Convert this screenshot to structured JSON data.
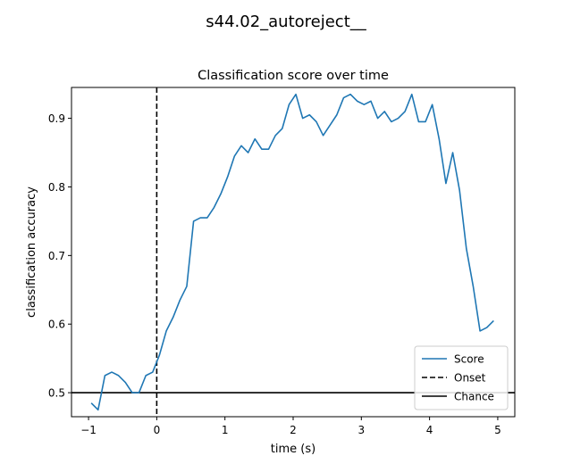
{
  "figure": {
    "suptitle": "s44.02_autoreject__"
  },
  "chart_data": {
    "type": "line",
    "title": "Classification score over time",
    "xlabel": "time (s)",
    "ylabel": "classification accuracy",
    "xlim": [
      -1.25,
      5.25
    ],
    "ylim": [
      0.465,
      0.945
    ],
    "xticks": [
      -1,
      0,
      1,
      2,
      3,
      4,
      5
    ],
    "xtick_labels": [
      "−1",
      "0",
      "1",
      "2",
      "3",
      "4",
      "5"
    ],
    "yticks": [
      0.5,
      0.6,
      0.7,
      0.8,
      0.9
    ],
    "ytick_labels": [
      "0.5",
      "0.6",
      "0.7",
      "0.8",
      "0.9"
    ],
    "grid": false,
    "legend_position": "lower right",
    "series": [
      {
        "name": "Score",
        "color": "#1f77b4",
        "x": [
          -0.96,
          -0.86,
          -0.76,
          -0.66,
          -0.56,
          -0.46,
          -0.36,
          -0.26,
          -0.16,
          -0.06,
          0.04,
          0.14,
          0.24,
          0.34,
          0.44,
          0.54,
          0.64,
          0.74,
          0.84,
          0.94,
          1.04,
          1.14,
          1.24,
          1.34,
          1.44,
          1.54,
          1.64,
          1.74,
          1.84,
          1.94,
          2.04,
          2.14,
          2.24,
          2.34,
          2.44,
          2.54,
          2.64,
          2.74,
          2.84,
          2.94,
          3.04,
          3.14,
          3.24,
          3.34,
          3.44,
          3.54,
          3.64,
          3.74,
          3.84,
          3.94,
          4.04,
          4.14,
          4.24,
          4.34,
          4.44,
          4.54,
          4.64,
          4.74,
          4.84,
          4.94
        ],
        "y": [
          0.485,
          0.475,
          0.525,
          0.53,
          0.525,
          0.515,
          0.5,
          0.5,
          0.525,
          0.53,
          0.555,
          0.59,
          0.61,
          0.635,
          0.655,
          0.75,
          0.755,
          0.755,
          0.77,
          0.79,
          0.815,
          0.845,
          0.86,
          0.85,
          0.87,
          0.855,
          0.855,
          0.875,
          0.885,
          0.92,
          0.935,
          0.9,
          0.905,
          0.895,
          0.875,
          0.89,
          0.905,
          0.93,
          0.935,
          0.925,
          0.92,
          0.925,
          0.9,
          0.91,
          0.895,
          0.9,
          0.91,
          0.935,
          0.895,
          0.895,
          0.92,
          0.87,
          0.805,
          0.85,
          0.795,
          0.71,
          0.655,
          0.59,
          0.595,
          0.605
        ]
      }
    ],
    "reference_lines": [
      {
        "name": "Onset",
        "orientation": "vertical",
        "value": 0,
        "style": "dashed",
        "color": "#000000"
      },
      {
        "name": "Chance",
        "orientation": "horizontal",
        "value": 0.5,
        "style": "solid",
        "color": "#000000"
      }
    ]
  }
}
